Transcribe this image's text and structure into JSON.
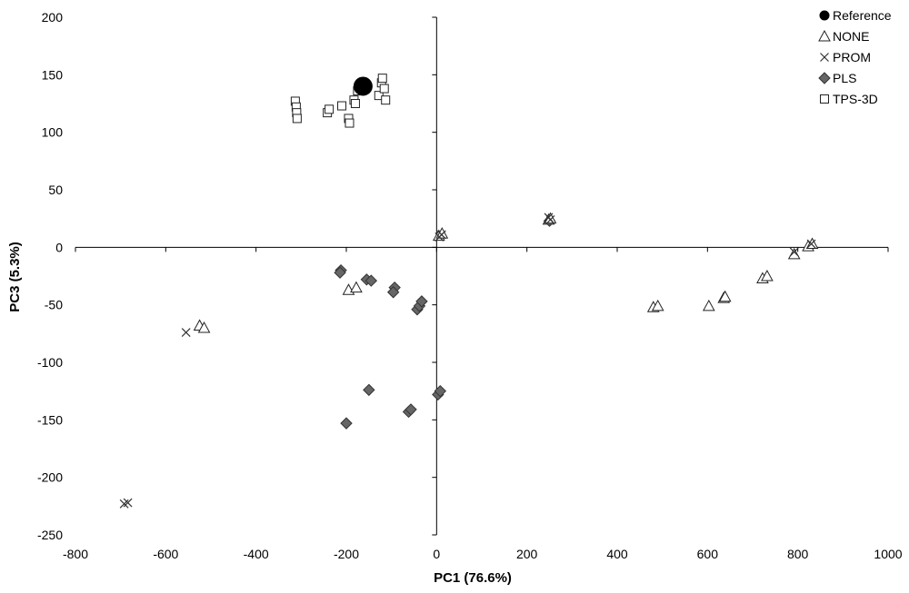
{
  "chart_data": {
    "type": "scatter",
    "xlabel": "PC1 (76.6%)",
    "ylabel": "PC3 (5.3%)",
    "xlim": [
      -800,
      1000
    ],
    "ylim": [
      -250,
      200
    ],
    "x_ticks": [
      -800,
      -600,
      -400,
      -200,
      0,
      200,
      400,
      600,
      800,
      1000
    ],
    "y_ticks": [
      -250,
      -200,
      -150,
      -100,
      -50,
      0,
      50,
      100,
      150,
      200
    ],
    "x_tick_labels": [
      "-800",
      "-600",
      "-400",
      "-200",
      "0",
      "200",
      "400",
      "600",
      "800",
      "1000"
    ],
    "y_tick_labels": [
      "-250",
      "-200",
      "-150",
      "-100",
      "-50",
      "0",
      "50",
      "100",
      "150",
      "200"
    ],
    "grid": false,
    "legend_position": "top-right",
    "series": [
      {
        "name": "Reference",
        "marker": "filled-circle",
        "color": "#000000",
        "points": [
          [
            -163,
            140
          ]
        ]
      },
      {
        "name": "NONE",
        "marker": "open-triangle",
        "color": "#ffffff",
        "points": [
          [
            -525,
            -68
          ],
          [
            -515,
            -70
          ],
          [
            -195,
            -37
          ],
          [
            -178,
            -35
          ],
          [
            5,
            10
          ],
          [
            12,
            12
          ],
          [
            248,
            24
          ],
          [
            252,
            25
          ],
          [
            480,
            -52
          ],
          [
            490,
            -51
          ],
          [
            603,
            -51
          ],
          [
            636,
            -44
          ],
          [
            639,
            -43
          ],
          [
            722,
            -27
          ],
          [
            732,
            -25
          ],
          [
            792,
            -6
          ],
          [
            823,
            1
          ],
          [
            832,
            3
          ]
        ]
      },
      {
        "name": "PROM",
        "marker": "x",
        "color": "#444444",
        "points": [
          [
            -692,
            -223
          ],
          [
            -684,
            -222
          ],
          [
            -555,
            -74
          ],
          [
            6,
            9
          ],
          [
            11,
            11
          ],
          [
            248,
            26
          ],
          [
            252,
            24
          ],
          [
            792,
            -4
          ],
          [
            830,
            3
          ]
        ]
      },
      {
        "name": "PLS",
        "marker": "diamond",
        "color": "#666666",
        "points": [
          [
            -212,
            -20
          ],
          [
            -214,
            -22
          ],
          [
            -155,
            -28
          ],
          [
            -145,
            -29
          ],
          [
            -93,
            -35
          ],
          [
            -96,
            -39
          ],
          [
            -43,
            -54
          ],
          [
            -38,
            -51
          ],
          [
            -33,
            -47
          ],
          [
            -200,
            -153
          ],
          [
            -150,
            -124
          ],
          [
            -62,
            -143
          ],
          [
            -57,
            -141
          ],
          [
            3,
            -128
          ],
          [
            8,
            -125
          ],
          [
            250,
            23
          ]
        ]
      },
      {
        "name": "TPS-3D",
        "marker": "open-square",
        "color": "#ffffff",
        "points": [
          [
            -313,
            127
          ],
          [
            -311,
            122
          ],
          [
            -310,
            117
          ],
          [
            -309,
            112
          ],
          [
            -242,
            117
          ],
          [
            -238,
            120
          ],
          [
            -210,
            123
          ],
          [
            -195,
            112
          ],
          [
            -193,
            108
          ],
          [
            -183,
            128
          ],
          [
            -180,
            125
          ],
          [
            -175,
            136
          ],
          [
            -168,
            139
          ],
          [
            -128,
            132
          ],
          [
            -122,
            143
          ],
          [
            -120,
            147
          ],
          [
            -116,
            138
          ],
          [
            -113,
            128
          ]
        ]
      }
    ]
  }
}
